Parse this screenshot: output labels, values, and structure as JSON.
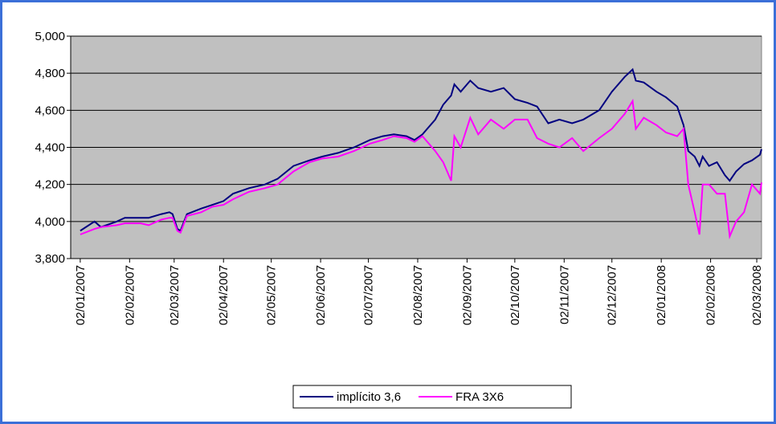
{
  "chart_data": {
    "type": "line",
    "x": [
      "02/01/2007",
      "11/01/2007",
      "15/01/2007",
      "25/01/2007",
      "30/01/2007",
      "09/02/2007",
      "14/02/2007",
      "22/02/2007",
      "27/02/2007",
      "01/03/2007",
      "04/03/2007",
      "06/03/2007",
      "10/03/2007",
      "19/03/2007",
      "26/03/2007",
      "02/04/2007",
      "08/04/2007",
      "18/04/2007",
      "28/04/2007",
      "06/05/2007",
      "16/05/2007",
      "26/05/2007",
      "03/06/2007",
      "13/06/2007",
      "23/06/2007",
      "03/07/2007",
      "11/07/2007",
      "18/07/2007",
      "26/07/2007",
      "31/07/2007",
      "05/08/2007",
      "13/08/2007",
      "18/08/2007",
      "23/08/2007",
      "25/08/2007",
      "29/08/2007",
      "04/09/2007",
      "09/09/2007",
      "17/09/2007",
      "25/09/2007",
      "02/10/2007",
      "10/10/2007",
      "16/10/2007",
      "23/10/2007",
      "30/10/2007",
      "07/11/2007",
      "14/11/2007",
      "24/11/2007",
      "02/12/2007",
      "10/12/2007",
      "15/12/2007",
      "17/12/2007",
      "22/12/2007",
      "30/12/2007",
      "05/01/2008",
      "12/01/2008",
      "16/01/2008",
      "19/01/2008",
      "23/01/2008",
      "26/01/2008",
      "28/01/2008",
      "01/02/2008",
      "06/02/2008",
      "11/02/2008",
      "14/02/2008",
      "18/02/2008",
      "23/02/2008",
      "28/02/2008",
      "04/03/2008",
      "05/03/2008"
    ],
    "series": [
      {
        "name": "implícito 3,6",
        "color": "#000080",
        "values": [
          3.95,
          4.0,
          3.97,
          4.0,
          4.02,
          4.02,
          4.02,
          4.04,
          4.05,
          4.04,
          3.96,
          3.95,
          4.04,
          4.07,
          4.09,
          4.11,
          4.15,
          4.18,
          4.2,
          4.23,
          4.3,
          4.33,
          4.35,
          4.37,
          4.4,
          4.44,
          4.46,
          4.47,
          4.46,
          4.44,
          4.47,
          4.55,
          4.63,
          4.68,
          4.74,
          4.7,
          4.76,
          4.72,
          4.7,
          4.72,
          4.66,
          4.64,
          4.62,
          4.53,
          4.55,
          4.53,
          4.55,
          4.6,
          4.7,
          4.78,
          4.82,
          4.76,
          4.75,
          4.7,
          4.67,
          4.62,
          4.52,
          4.38,
          4.35,
          4.3,
          4.35,
          4.3,
          4.32,
          4.25,
          4.22,
          4.27,
          4.31,
          4.33,
          4.36,
          4.39
        ]
      },
      {
        "name": "FRA 3X6",
        "color": "#ff00ff",
        "values": [
          3.93,
          3.96,
          3.97,
          3.98,
          3.99,
          3.99,
          3.98,
          4.01,
          4.02,
          4.02,
          3.95,
          3.94,
          4.03,
          4.05,
          4.08,
          4.09,
          4.12,
          4.16,
          4.18,
          4.2,
          4.27,
          4.32,
          4.34,
          4.35,
          4.38,
          4.42,
          4.44,
          4.46,
          4.45,
          4.43,
          4.46,
          4.38,
          4.32,
          4.22,
          4.46,
          4.4,
          4.56,
          4.47,
          4.55,
          4.5,
          4.55,
          4.55,
          4.45,
          4.42,
          4.4,
          4.45,
          4.38,
          4.45,
          4.5,
          4.58,
          4.65,
          4.5,
          4.56,
          4.52,
          4.48,
          4.46,
          4.5,
          4.2,
          4.05,
          3.93,
          4.2,
          4.2,
          4.15,
          4.15,
          3.92,
          4.0,
          4.05,
          4.2,
          4.15,
          4.21
        ]
      }
    ],
    "xlim": [
      "27/12/2006",
      "05/03/2008"
    ],
    "xticks": [
      "02/01/2007",
      "02/02/2007",
      "02/03/2007",
      "02/04/2007",
      "02/05/2007",
      "02/06/2007",
      "02/07/2007",
      "02/08/2007",
      "02/09/2007",
      "02/10/2007",
      "02/11/2007",
      "02/12/2007",
      "02/01/2008",
      "02/02/2008",
      "02/03/2008"
    ],
    "ylim": [
      3.8,
      5.0
    ],
    "yticks": [
      {
        "value": 3.8,
        "label": "3,800"
      },
      {
        "value": 4.0,
        "label": "4,000"
      },
      {
        "value": 4.2,
        "label": "4,200"
      },
      {
        "value": 4.4,
        "label": "4,400"
      },
      {
        "value": 4.6,
        "label": "4,600"
      },
      {
        "value": 4.8,
        "label": "4,800"
      },
      {
        "value": 5.0,
        "label": "5,000"
      }
    ],
    "grid": true,
    "plot_background": "#c0c0c0",
    "legend": "bottom"
  }
}
